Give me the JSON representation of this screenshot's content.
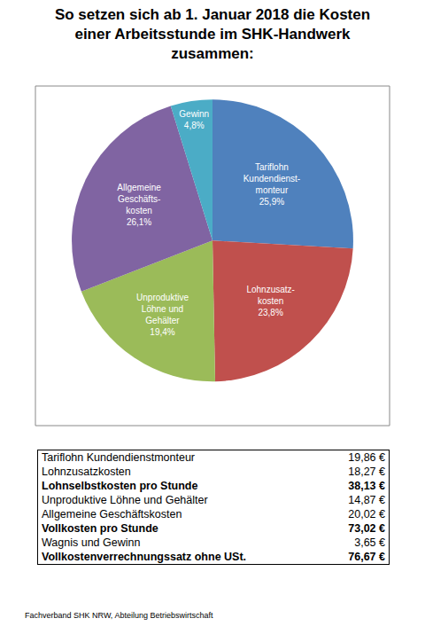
{
  "chart_data": {
    "type": "pie",
    "title": "So setzen sich ab 1. Januar 2018 die Kosten\neiner Arbeitsstunde im SHK-Handwerk\nzusammen:",
    "categories": [
      "Tariflohn\nKundendienst-\nmonteur",
      "Lohnzusatz-\nkosten",
      "Unproduktive\nLöhne und\nGehälter",
      "Allgemeine\nGeschäfts-\nkosten",
      "Gewinn"
    ],
    "values": [
      25.9,
      23.8,
      19.4,
      26.1,
      4.8
    ],
    "value_labels": [
      "25,9%",
      "23,8%",
      "19,4%",
      "26,1%",
      "4,8%"
    ],
    "colors": [
      "#4f81bd",
      "#c0504d",
      "#9bbb59",
      "#8064a2",
      "#4bacc6"
    ],
    "data_labels": true
  },
  "table": {
    "rows": [
      {
        "label": "Tariflohn Kundendienstmonteur",
        "value": "19,86 €",
        "bold": false
      },
      {
        "label": "Lohnzusatzkosten",
        "value": "18,27 €",
        "bold": false
      },
      {
        "label": "Lohnselbstkosten pro Stunde",
        "value": "38,13 €",
        "bold": true
      },
      {
        "label": "Unproduktive Löhne und Gehälter",
        "value": "14,87 €",
        "bold": false
      },
      {
        "label": "Allgemeine Geschäftskosten",
        "value": "20,02 €",
        "bold": false
      },
      {
        "label": "Vollkosten pro Stunde",
        "value": "73,02 €",
        "bold": true
      },
      {
        "label": "Wagnis und Gewinn",
        "value": "3,65 €",
        "bold": false
      },
      {
        "label": "Vollkostenverrechnungssatz ohne USt.",
        "value": "76,67 €",
        "bold": true
      }
    ]
  },
  "source": "Fachverband SHK NRW, Abteilung Betriebswirtschaft"
}
